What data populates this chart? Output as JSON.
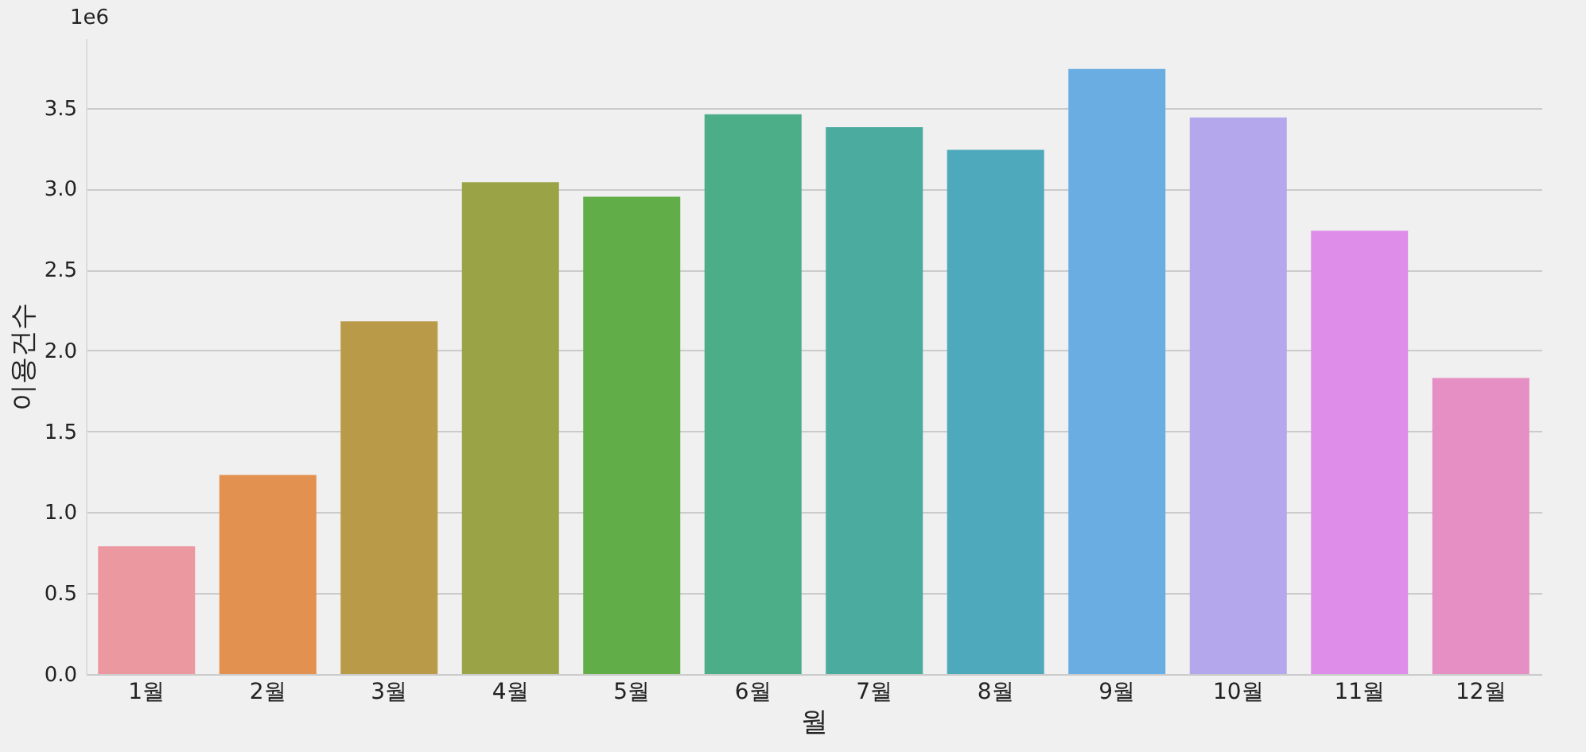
{
  "chart_data": {
    "type": "bar",
    "xlabel": "월",
    "ylabel": "이용건수",
    "annotations": [
      "1e6"
    ],
    "categories": [
      "1월",
      "2월",
      "3월",
      "4월",
      "5월",
      "6월",
      "7월",
      "8월",
      "9월",
      "10월",
      "11월",
      "12월"
    ],
    "values": [
      0.79,
      1.23,
      2.18,
      3.04,
      2.95,
      3.46,
      3.38,
      3.24,
      3.74,
      3.44,
      2.74,
      1.83
    ],
    "colors": [
      "#ec98a0",
      "#e39150",
      "#b89a48",
      "#9aa446",
      "#61ad47",
      "#4bae88",
      "#4aab9e",
      "#4ea9bc",
      "#69ade2",
      "#b4a7ec",
      "#de8ee9",
      "#e68fc4"
    ],
    "ylim": [
      0,
      3.93
    ],
    "yticks": [
      {
        "value": 0,
        "label": "0.0"
      },
      {
        "value": 0.5,
        "label": "0.5"
      },
      {
        "value": 1,
        "label": "1.0"
      },
      {
        "value": 1.5,
        "label": "1.5"
      },
      {
        "value": 2,
        "label": "2.0"
      },
      {
        "value": 2.5,
        "label": "2.5"
      },
      {
        "value": 3,
        "label": "3.0"
      },
      {
        "value": 3.5,
        "label": "3.5"
      }
    ],
    "grid": "y"
  }
}
